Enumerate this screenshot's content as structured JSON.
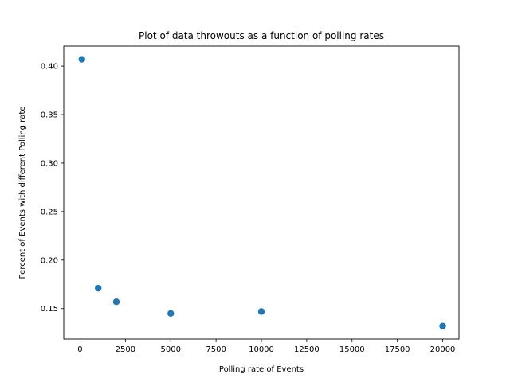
{
  "chart_data": {
    "type": "scatter",
    "title": "Plot of data throwouts as a function of polling rates",
    "xlabel": "Polling rate of Events",
    "ylabel": "Percent of Events with different Polling rate",
    "xlim": [
      -900,
      20900
    ],
    "ylim": [
      0.1186,
      0.4206
    ],
    "xticks": [
      0,
      2500,
      5000,
      7500,
      10000,
      12500,
      15000,
      17500,
      20000
    ],
    "yticks": [
      0.15,
      0.2,
      0.25,
      0.3,
      0.35,
      0.4
    ],
    "ytick_labels": [
      "0.15",
      "0.20",
      "0.25",
      "0.30",
      "0.35",
      "0.40"
    ],
    "grid": false,
    "marker_color": "#1f77b4",
    "points": [
      {
        "x": 100,
        "y": 0.407
      },
      {
        "x": 1000,
        "y": 0.171
      },
      {
        "x": 2000,
        "y": 0.157
      },
      {
        "x": 5000,
        "y": 0.145
      },
      {
        "x": 10000,
        "y": 0.147
      },
      {
        "x": 20000,
        "y": 0.132
      }
    ]
  }
}
